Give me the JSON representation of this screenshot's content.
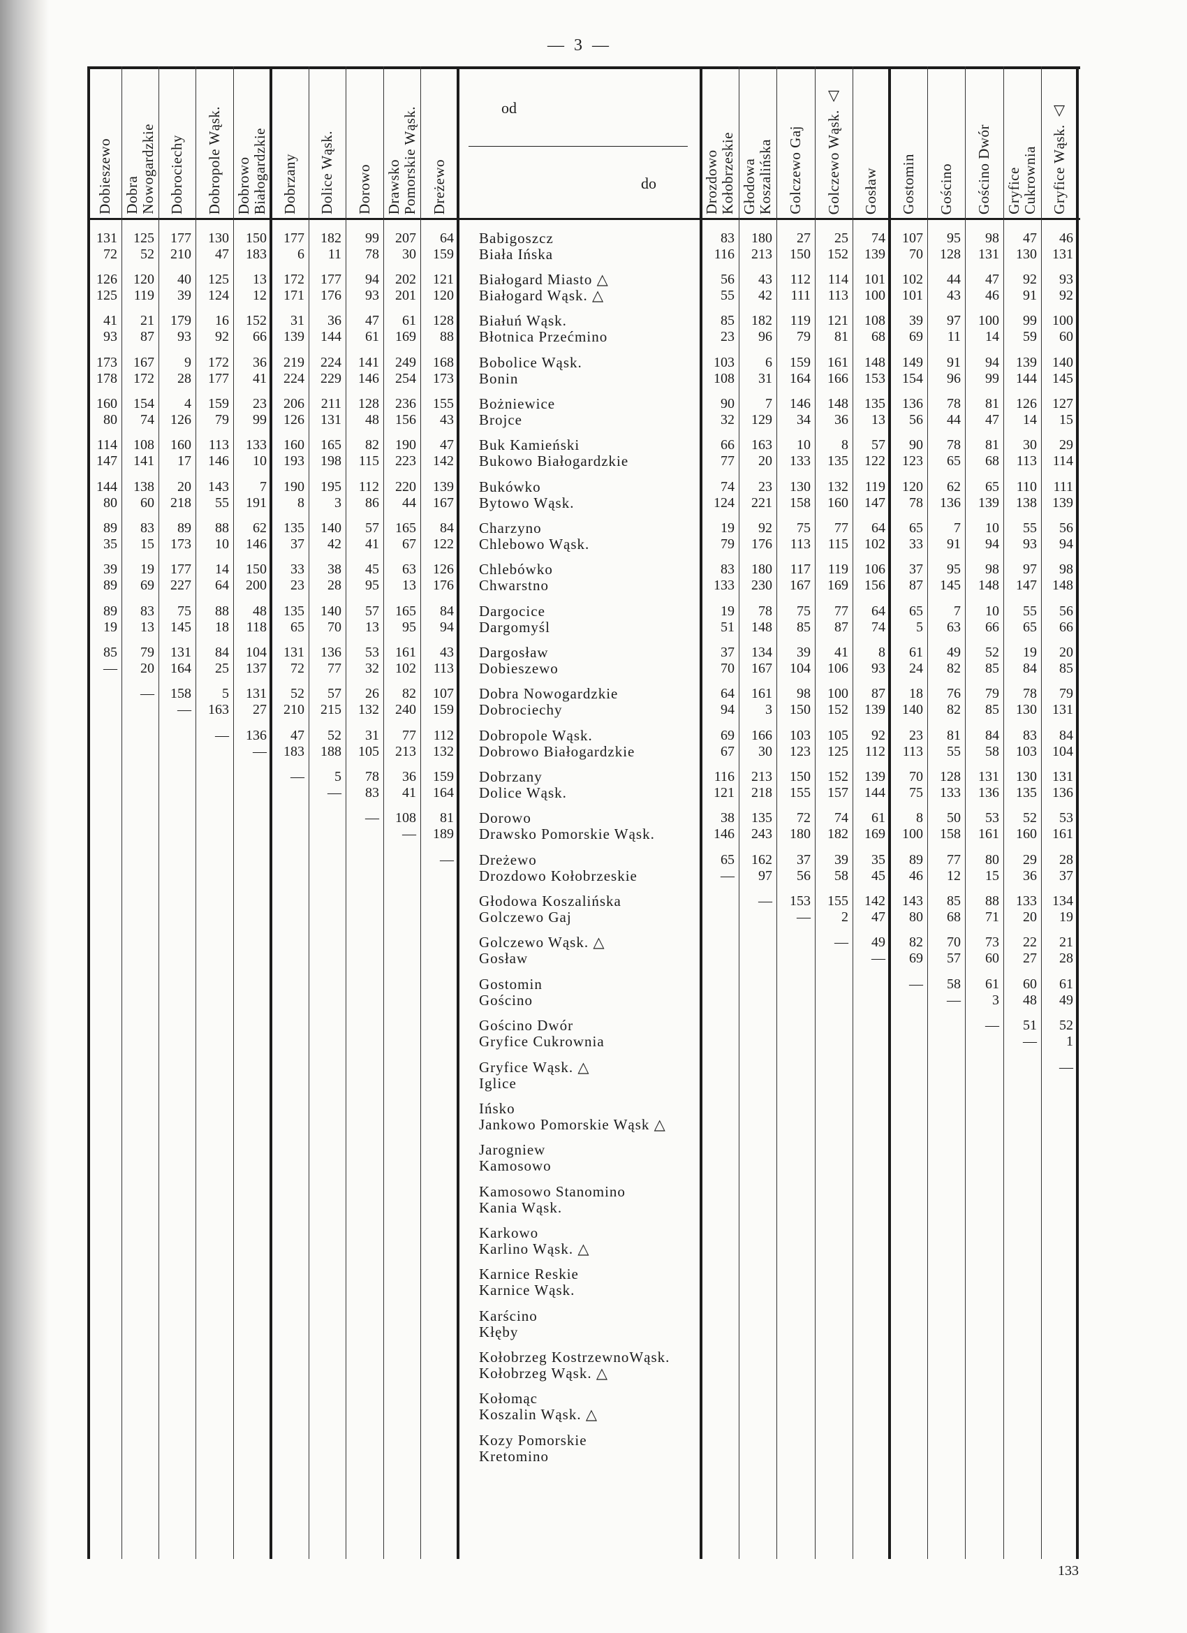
{
  "page": {
    "top_marker": "— 3 —",
    "page_number": "133"
  },
  "header": {
    "from_label": "od",
    "to_label": "do"
  },
  "left_columns": [
    [
      "Dobieszewo"
    ],
    [
      "Dobra",
      "Nowogardzkie"
    ],
    [
      "Dobrociechy"
    ],
    [
      "Dobropole Wąsk."
    ],
    [
      "Dobrowo",
      "Białogardzkie"
    ],
    [
      "Dobrzany"
    ],
    [
      "Dolice Wąsk."
    ],
    [
      "Dorowo"
    ],
    [
      "Drawsko",
      "Pomorskie Wąsk."
    ],
    [
      "Dreżewo"
    ]
  ],
  "right_columns": [
    [
      "Drozdowo",
      "Kołobrzeskie"
    ],
    [
      "Głodowa",
      "Koszalińska"
    ],
    [
      "Golczewo Gaj"
    ],
    [
      "Golczewo Wąsk. △"
    ],
    [
      "Gosław"
    ],
    [
      "Gostomin"
    ],
    [
      "Gościno"
    ],
    [
      "Gościno Dwór"
    ],
    [
      "Gryfice",
      "Cukrownia"
    ],
    [
      "Gryfice Wąsk. △"
    ]
  ],
  "rows": [
    {
      "names": [
        "Babigoszcz",
        "Biała Ińska"
      ],
      "left": [
        [
          "131",
          "125",
          "177",
          "130",
          "150",
          "177",
          "182",
          "99",
          "207",
          "64"
        ],
        [
          "72",
          "52",
          "210",
          "47",
          "183",
          "6",
          "11",
          "78",
          "30",
          "159"
        ]
      ],
      "right": [
        [
          "83",
          "180",
          "27",
          "25",
          "74",
          "107",
          "95",
          "98",
          "47",
          "46"
        ],
        [
          "116",
          "213",
          "150",
          "152",
          "139",
          "70",
          "128",
          "131",
          "130",
          "131"
        ]
      ]
    },
    {
      "names": [
        "Białogard Miasto △",
        "Białogard Wąsk. △"
      ],
      "left": [
        [
          "126",
          "120",
          "40",
          "125",
          "13",
          "172",
          "177",
          "94",
          "202",
          "121"
        ],
        [
          "125",
          "119",
          "39",
          "124",
          "12",
          "171",
          "176",
          "93",
          "201",
          "120"
        ]
      ],
      "right": [
        [
          "56",
          "43",
          "112",
          "114",
          "101",
          "102",
          "44",
          "47",
          "92",
          "93"
        ],
        [
          "55",
          "42",
          "111",
          "113",
          "100",
          "101",
          "43",
          "46",
          "91",
          "92"
        ]
      ]
    },
    {
      "names": [
        "Białuń Wąsk.",
        "Błotnica Przećmino"
      ],
      "left": [
        [
          "41",
          "21",
          "179",
          "16",
          "152",
          "31",
          "36",
          "47",
          "61",
          "128"
        ],
        [
          "93",
          "87",
          "93",
          "92",
          "66",
          "139",
          "144",
          "61",
          "169",
          "88"
        ]
      ],
      "right": [
        [
          "85",
          "182",
          "119",
          "121",
          "108",
          "39",
          "97",
          "100",
          "99",
          "100"
        ],
        [
          "23",
          "96",
          "79",
          "81",
          "68",
          "69",
          "11",
          "14",
          "59",
          "60"
        ]
      ]
    },
    {
      "names": [
        "Bobolice Wąsk.",
        "Bonin"
      ],
      "left": [
        [
          "173",
          "167",
          "9",
          "172",
          "36",
          "219",
          "224",
          "141",
          "249",
          "168"
        ],
        [
          "178",
          "172",
          "28",
          "177",
          "41",
          "224",
          "229",
          "146",
          "254",
          "173"
        ]
      ],
      "right": [
        [
          "103",
          "6",
          "159",
          "161",
          "148",
          "149",
          "91",
          "94",
          "139",
          "140"
        ],
        [
          "108",
          "31",
          "164",
          "166",
          "153",
          "154",
          "96",
          "99",
          "144",
          "145"
        ]
      ]
    },
    {
      "names": [
        "Bożniewice",
        "Brojce"
      ],
      "left": [
        [
          "160",
          "154",
          "4",
          "159",
          "23",
          "206",
          "211",
          "128",
          "236",
          "155"
        ],
        [
          "80",
          "74",
          "126",
          "79",
          "99",
          "126",
          "131",
          "48",
          "156",
          "43"
        ]
      ],
      "right": [
        [
          "90",
          "7",
          "146",
          "148",
          "135",
          "136",
          "78",
          "81",
          "126",
          "127"
        ],
        [
          "32",
          "129",
          "34",
          "36",
          "13",
          "56",
          "44",
          "47",
          "14",
          "15"
        ]
      ]
    },
    {
      "names": [
        "Buk Kamieński",
        "Bukowo Białogardzkie"
      ],
      "left": [
        [
          "114",
          "108",
          "160",
          "113",
          "133",
          "160",
          "165",
          "82",
          "190",
          "47"
        ],
        [
          "147",
          "141",
          "17",
          "146",
          "10",
          "193",
          "198",
          "115",
          "223",
          "142"
        ]
      ],
      "right": [
        [
          "66",
          "163",
          "10",
          "8",
          "57",
          "90",
          "78",
          "81",
          "30",
          "29"
        ],
        [
          "77",
          "20",
          "133",
          "135",
          "122",
          "123",
          "65",
          "68",
          "113",
          "114"
        ]
      ]
    },
    {
      "names": [
        "Bukówko",
        "Bytowo Wąsk."
      ],
      "left": [
        [
          "144",
          "138",
          "20",
          "143",
          "7",
          "190",
          "195",
          "112",
          "220",
          "139"
        ],
        [
          "80",
          "60",
          "218",
          "55",
          "191",
          "8",
          "3",
          "86",
          "44",
          "167"
        ]
      ],
      "right": [
        [
          "74",
          "23",
          "130",
          "132",
          "119",
          "120",
          "62",
          "65",
          "110",
          "111"
        ],
        [
          "124",
          "221",
          "158",
          "160",
          "147",
          "78",
          "136",
          "139",
          "138",
          "139"
        ]
      ]
    },
    {
      "names": [
        "Charzyno",
        "Chlebowo Wąsk."
      ],
      "left": [
        [
          "89",
          "83",
          "89",
          "88",
          "62",
          "135",
          "140",
          "57",
          "165",
          "84"
        ],
        [
          "35",
          "15",
          "173",
          "10",
          "146",
          "37",
          "42",
          "41",
          "67",
          "122"
        ]
      ],
      "right": [
        [
          "19",
          "92",
          "75",
          "77",
          "64",
          "65",
          "7",
          "10",
          "55",
          "56"
        ],
        [
          "79",
          "176",
          "113",
          "115",
          "102",
          "33",
          "91",
          "94",
          "93",
          "94"
        ]
      ]
    },
    {
      "names": [
        "Chlebówko",
        "Chwarstno"
      ],
      "left": [
        [
          "39",
          "19",
          "177",
          "14",
          "150",
          "33",
          "38",
          "45",
          "63",
          "126"
        ],
        [
          "89",
          "69",
          "227",
          "64",
          "200",
          "23",
          "28",
          "95",
          "13",
          "176"
        ]
      ],
      "right": [
        [
          "83",
          "180",
          "117",
          "119",
          "106",
          "37",
          "95",
          "98",
          "97",
          "98"
        ],
        [
          "133",
          "230",
          "167",
          "169",
          "156",
          "87",
          "145",
          "148",
          "147",
          "148"
        ]
      ]
    },
    {
      "names": [
        "Dargocice",
        "Dargomyśl"
      ],
      "left": [
        [
          "89",
          "83",
          "75",
          "88",
          "48",
          "135",
          "140",
          "57",
          "165",
          "84"
        ],
        [
          "19",
          "13",
          "145",
          "18",
          "118",
          "65",
          "70",
          "13",
          "95",
          "94"
        ]
      ],
      "right": [
        [
          "19",
          "78",
          "75",
          "77",
          "64",
          "65",
          "7",
          "10",
          "55",
          "56"
        ],
        [
          "51",
          "148",
          "85",
          "87",
          "74",
          "5",
          "63",
          "66",
          "65",
          "66"
        ]
      ]
    },
    {
      "names": [
        "Dargosław",
        "Dobieszewo"
      ],
      "left": [
        [
          "85",
          "79",
          "131",
          "84",
          "104",
          "131",
          "136",
          "53",
          "161",
          "43"
        ],
        [
          "—",
          "20",
          "164",
          "25",
          "137",
          "72",
          "77",
          "32",
          "102",
          "113"
        ]
      ],
      "right": [
        [
          "37",
          "134",
          "39",
          "41",
          "8",
          "61",
          "49",
          "52",
          "19",
          "20"
        ],
        [
          "70",
          "167",
          "104",
          "106",
          "93",
          "24",
          "82",
          "85",
          "84",
          "85"
        ]
      ]
    },
    {
      "names": [
        "Dobra Nowogardzkie",
        "Dobrociechy"
      ],
      "left": [
        [
          "",
          "—",
          "158",
          "5",
          "131",
          "52",
          "57",
          "26",
          "82",
          "107"
        ],
        [
          "",
          "",
          "—",
          "163",
          "27",
          "210",
          "215",
          "132",
          "240",
          "159"
        ]
      ],
      "right": [
        [
          "64",
          "161",
          "98",
          "100",
          "87",
          "18",
          "76",
          "79",
          "78",
          "79"
        ],
        [
          "94",
          "3",
          "150",
          "152",
          "139",
          "140",
          "82",
          "85",
          "130",
          "131"
        ]
      ]
    },
    {
      "names": [
        "Dobropole Wąsk.",
        "Dobrowo Białogardzkie"
      ],
      "left": [
        [
          "",
          "",
          "",
          "—",
          "136",
          "47",
          "52",
          "31",
          "77",
          "112"
        ],
        [
          "",
          "",
          "",
          "",
          "—",
          "183",
          "188",
          "105",
          "213",
          "132"
        ]
      ],
      "right": [
        [
          "69",
          "166",
          "103",
          "105",
          "92",
          "23",
          "81",
          "84",
          "83",
          "84"
        ],
        [
          "67",
          "30",
          "123",
          "125",
          "112",
          "113",
          "55",
          "58",
          "103",
          "104"
        ]
      ]
    },
    {
      "names": [
        "Dobrzany",
        "Dolice Wąsk."
      ],
      "left": [
        [
          "",
          "",
          "",
          "",
          "",
          "—",
          "5",
          "78",
          "36",
          "159"
        ],
        [
          "",
          "",
          "",
          "",
          "",
          "",
          "—",
          "83",
          "41",
          "164"
        ]
      ],
      "right": [
        [
          "116",
          "213",
          "150",
          "152",
          "139",
          "70",
          "128",
          "131",
          "130",
          "131"
        ],
        [
          "121",
          "218",
          "155",
          "157",
          "144",
          "75",
          "133",
          "136",
          "135",
          "136"
        ]
      ]
    },
    {
      "names": [
        "Dorowo",
        "Drawsko Pomorskie  Wąsk."
      ],
      "left": [
        [
          "",
          "",
          "",
          "",
          "",
          "",
          "",
          "—",
          "108",
          "81"
        ],
        [
          "",
          "",
          "",
          "",
          "",
          "",
          "",
          "",
          "—",
          "189"
        ]
      ],
      "right": [
        [
          "38",
          "135",
          "72",
          "74",
          "61",
          "8",
          "50",
          "53",
          "52",
          "53"
        ],
        [
          "146",
          "243",
          "180",
          "182",
          "169",
          "100",
          "158",
          "161",
          "160",
          "161"
        ]
      ]
    },
    {
      "names": [
        "Dreżewo",
        "Drozdowo Kołobrzeskie"
      ],
      "left": [
        [
          "",
          "",
          "",
          "",
          "",
          "",
          "",
          "",
          "",
          "—"
        ],
        [
          "",
          "",
          "",
          "",
          "",
          "",
          "",
          "",
          "",
          ""
        ]
      ],
      "right": [
        [
          "65",
          "162",
          "37",
          "39",
          "35",
          "89",
          "77",
          "80",
          "29",
          "28"
        ],
        [
          "—",
          "97",
          "56",
          "58",
          "45",
          "46",
          "12",
          "15",
          "36",
          "37"
        ]
      ]
    },
    {
      "names": [
        "Głodowa Koszalińska",
        "Golczewo Gaj"
      ],
      "right": [
        [
          "",
          "—",
          "153",
          "155",
          "142",
          "143",
          "85",
          "88",
          "133",
          "134"
        ],
        [
          "",
          "",
          "—",
          "2",
          "47",
          "80",
          "68",
          "71",
          "20",
          "19"
        ]
      ]
    },
    {
      "names": [
        "Golczewo Wąsk. △",
        "Gosław"
      ],
      "right": [
        [
          "",
          "",
          "",
          "—",
          "49",
          "82",
          "70",
          "73",
          "22",
          "21"
        ],
        [
          "",
          "",
          "",
          "",
          "—",
          "69",
          "57",
          "60",
          "27",
          "28"
        ]
      ]
    },
    {
      "names": [
        "Gostomin",
        "Gościno"
      ],
      "right": [
        [
          "",
          "",
          "",
          "",
          "",
          "—",
          "58",
          "61",
          "60",
          "61"
        ],
        [
          "",
          "",
          "",
          "",
          "",
          "",
          "—",
          "3",
          "48",
          "49"
        ]
      ]
    },
    {
      "names": [
        "Gościno Dwór",
        "Gryfice Cukrownia"
      ],
      "right": [
        [
          "",
          "",
          "",
          "",
          "",
          "",
          "",
          "—",
          "51",
          "52"
        ],
        [
          "",
          "",
          "",
          "",
          "",
          "",
          "",
          "",
          "—",
          "1"
        ]
      ]
    },
    {
      "names": [
        "Gryfice Wąsk. △",
        "Iglice"
      ],
      "right": [
        [
          "",
          "",
          "",
          "",
          "",
          "",
          "",
          "",
          "",
          "—"
        ],
        [
          "",
          "",
          "",
          "",
          "",
          "",
          "",
          "",
          "",
          ""
        ]
      ]
    },
    {
      "names": [
        "Ińsko",
        "Jankowo Pomorskie Wąsk △"
      ]
    },
    {
      "names": [
        "Jarogniew",
        "Kamosowo"
      ]
    },
    {
      "names": [
        "Kamosowo Stanomino",
        "Kania Wąsk."
      ]
    },
    {
      "names": [
        "Karkowo",
        "Karlino Wąsk. △"
      ]
    },
    {
      "names": [
        "Karnice Reskie",
        "Karnice Wąsk."
      ]
    },
    {
      "names": [
        "Karścino",
        "Kłęby"
      ]
    },
    {
      "names": [
        "Kołobrzeg KostrzewnoWąsk.",
        "Kołobrzeg Wąsk. △"
      ]
    },
    {
      "names": [
        "Kołomąc",
        "Koszalin Wąsk. △"
      ]
    },
    {
      "names": [
        "Kozy Pomorskie",
        "Kretomino"
      ]
    }
  ]
}
